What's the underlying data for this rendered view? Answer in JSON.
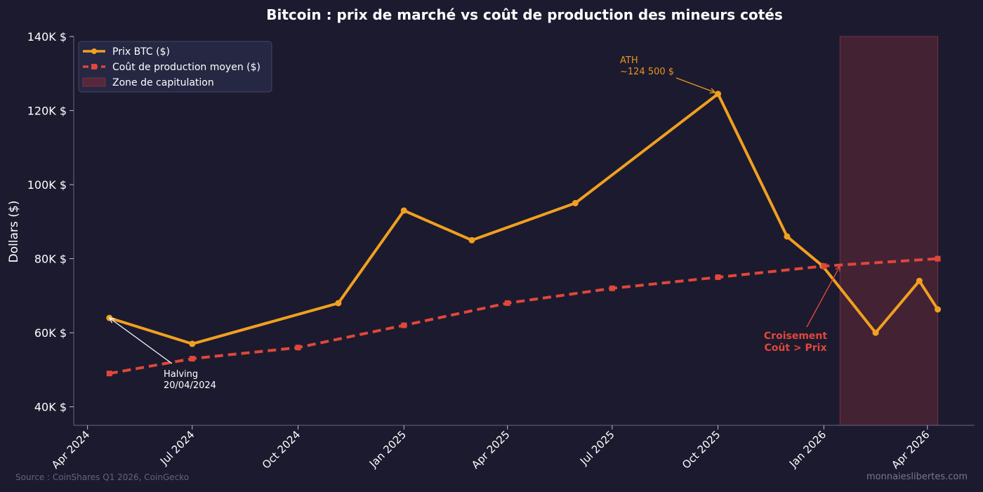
{
  "chart_data": {
    "type": "line",
    "title": "Bitcoin : prix de marché vs coût de production des mineurs cotés",
    "ylabel": "Dollars ($)",
    "xlabel": "",
    "ylim": [
      35000,
      140000
    ],
    "xlim": [
      "2024-03-20",
      "2026-05-12"
    ],
    "grid": false,
    "legend_position": "top-left",
    "x_ticks": [
      "2024-04-01",
      "2024-07-01",
      "2024-10-01",
      "2025-01-01",
      "2025-04-01",
      "2025-07-01",
      "2025-10-01",
      "2026-01-01",
      "2026-04-01"
    ],
    "x_tick_labels": [
      "Apr 2024",
      "Jul 2024",
      "Oct 2024",
      "Jan 2025",
      "Apr 2025",
      "Jul 2025",
      "Oct 2025",
      "Jan 2026",
      "Apr 2026"
    ],
    "y_ticks": [
      40000,
      60000,
      80000,
      100000,
      120000,
      140000
    ],
    "y_tick_labels": [
      "40K $",
      "60K $",
      "80K $",
      "100K $",
      "120K $",
      "140K $"
    ],
    "series": [
      {
        "name": "Prix BTC ($)",
        "color": "#f0a020",
        "style": "solid",
        "marker": "circle",
        "x": [
          "2024-04-20",
          "2024-07-01",
          "2024-11-05",
          "2025-01-01",
          "2025-03-01",
          "2025-05-30",
          "2025-10-01",
          "2025-11-30",
          "2025-12-31",
          "2026-02-15",
          "2026-03-25",
          "2026-04-10"
        ],
        "values": [
          64000,
          57000,
          68000,
          93000,
          85000,
          95000,
          124500,
          86000,
          78000,
          60000,
          74000,
          66300
        ]
      },
      {
        "name": "Coût de production moyen ($)",
        "color": "#e0473a",
        "style": "dashed",
        "marker": "square",
        "x": [
          "2024-04-20",
          "2024-07-01",
          "2024-10-01",
          "2025-01-01",
          "2025-04-01",
          "2025-07-01",
          "2025-10-01",
          "2026-01-01",
          "2026-04-10"
        ],
        "values": [
          49000,
          53000,
          56000,
          62000,
          68000,
          72000,
          75000,
          78000,
          80000
        ]
      }
    ],
    "shaded_zone": {
      "name": "Zone de capitulation",
      "color": "#6a2a3a",
      "x": [
        "2026-01-15",
        "2026-04-10"
      ]
    },
    "annotations": [
      {
        "id": "ath",
        "lines": [
          "ATH",
          "~124 500 $"
        ],
        "color": "#e8951f",
        "weight": "normal",
        "target": [
          "2025-10-01",
          124500
        ]
      },
      {
        "id": "halving",
        "lines": [
          "Halving",
          "20/04/2024"
        ],
        "color": "#ffffff",
        "weight": "normal",
        "target": [
          "2024-04-20",
          64000
        ]
      },
      {
        "id": "cross",
        "lines": [
          "Croisement",
          "Coût > Prix"
        ],
        "color": "#e0473a",
        "weight": "bold",
        "target": [
          "2026-01-15",
          78000
        ]
      }
    ]
  },
  "footer": {
    "source": "Source : CoinShares Q1 2026, CoinGecko",
    "brand": "monnaieslibertes.com"
  }
}
